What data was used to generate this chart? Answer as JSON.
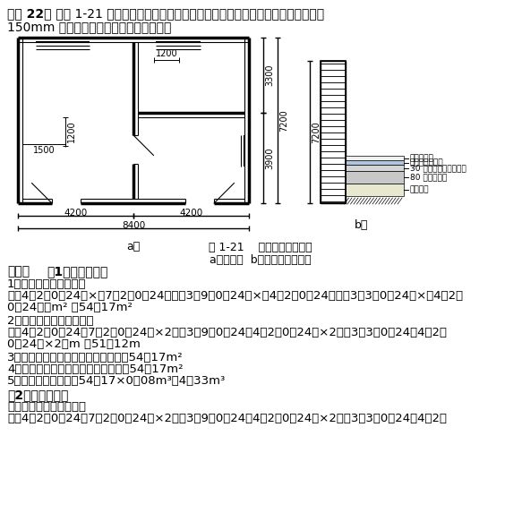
{
  "title_bold": "【例 22】",
  "title_rest": " 如图 1-21 所示为某工程底层平面图，已知地面为现浇水磨石面层，踢脚线为",
  "title_line2": "150mm 高水磨石，求地面的各项工程量。",
  "caption1": "图 1-21    某工程地面施工图",
  "caption2": "a）平面图  b）地面构造示意图",
  "label_a": "a）",
  "label_b": "b）",
  "dim_1200_top": "1200",
  "dim_1500": "1500",
  "dim_1200_mid": "1200",
  "dim_3300": "3300",
  "dim_3900": "3900",
  "dim_7200": "7200",
  "dim_4200L": "4200",
  "dim_4200R": "4200",
  "dim_8400": "8400",
  "layer_names": [
    "水磨石面层",
    "二毡一油防潮层",
    "30 厚细石混凝土找平层",
    "80 厚碎石垫层",
    "素土夯实"
  ],
  "sol_header1": "【解】",
  "sol_header2": "（1）定额工程量",
  "sol_1label": "1）水磨石地面工程量：",
  "sol_1f1": "［（4．2－0．24）×（7．2－0．24）＋（3．9－0．24）×（4．2－0．24）＋（3．3－0．24）×（4．2－",
  "sol_1f2": "0．24）］m² ＝54．17m²",
  "sol_2label": "2）水磨石踢脚线工程量：",
  "sol_2f1": "［（4．2－0．24＋7．2－0．24）×2＋（3．9－0．24＋4．2－0．24）×2＋（3．3－0．24＋4．2－",
  "sol_2f2": "0．24）×2］m ＝51．12m",
  "sol_3": "3）防潮层工程量＝地面面层工程量＝54．17m²",
  "sol_4": "4）找平层工程量＝地面面层工程量＝54．17m²",
  "sol_5": "5）碎石垫层工程量＝54．17×0．08m³＝4．33m³",
  "sol_p2header": "（2）清单工程量",
  "sol_p2sub": "水磨石地面踢脚线工程量",
  "sol_p2f1": "［（4．2－0．24＋7．2－0．24）×2＋（3．9－0．24＋4．2－0．24）×2＋（3．3－0．24＋4．2－",
  "background": "#ffffff"
}
